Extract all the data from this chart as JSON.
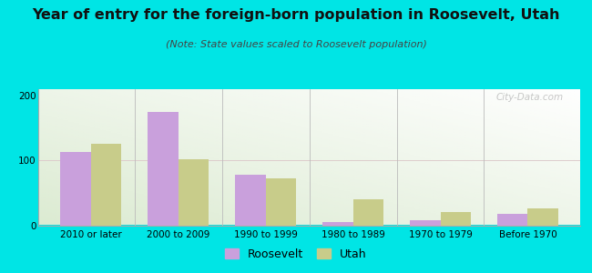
{
  "title": "Year of entry for the foreign-born population in Roosevelt, Utah",
  "subtitle": "(Note: State values scaled to Roosevelt population)",
  "categories": [
    "2010 or later",
    "2000 to 2009",
    "1990 to 1999",
    "1980 to 1989",
    "1970 to 1979",
    "Before 1970"
  ],
  "roosevelt_values": [
    113,
    175,
    78,
    5,
    8,
    18
  ],
  "utah_values": [
    125,
    102,
    72,
    40,
    20,
    26
  ],
  "roosevelt_color": "#c9a0dc",
  "utah_color": "#c8cc8a",
  "bg_outer": "#00e5e5",
  "ylim": [
    0,
    210
  ],
  "yticks": [
    0,
    100,
    200
  ],
  "bar_width": 0.35,
  "title_fontsize": 11.5,
  "subtitle_fontsize": 8,
  "tick_fontsize": 7.5,
  "legend_fontsize": 9,
  "watermark": "City-Data.com"
}
